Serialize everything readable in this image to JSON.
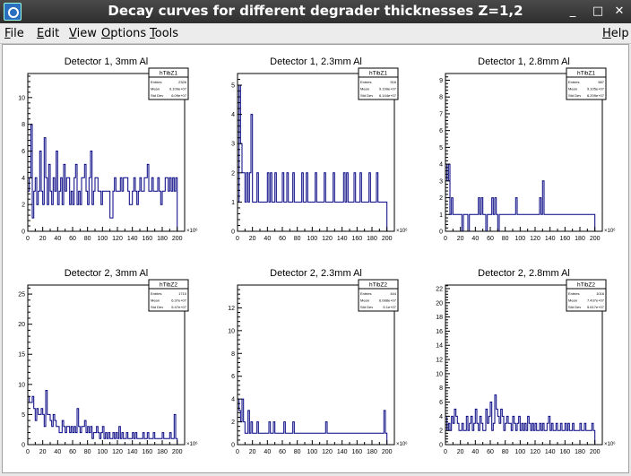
{
  "window": {
    "title": "Decay curves for different degrader thicknesses Z=1,2",
    "minimize": "_",
    "maximize": "□",
    "close": "✕"
  },
  "menu": {
    "file": "File",
    "file_u": "F",
    "file_r": "ile",
    "edit": "Edit",
    "edit_u": "E",
    "edit_r": "dit",
    "view": "View",
    "view_u": "V",
    "view_r": "iew",
    "options": "Options",
    "options_u": "O",
    "options_r": "ptions",
    "tools": "Tools",
    "tools_u": "T",
    "tools_r": "ools",
    "help": "Help",
    "help_u": "H",
    "help_r": "elp"
  },
  "colors": {
    "line": "#000080",
    "frame": "#000000",
    "background": "#ffffff"
  },
  "chart_data": [
    {
      "type": "histogram",
      "title": "Detector 1, 3mm Al",
      "stats": {
        "name": "hTibZ1",
        "rows": [
          [
            "Entries",
            "2326"
          ],
          [
            "Mean",
            "9.109e+07"
          ],
          [
            "Std Dev",
            "6.09e+07"
          ]
        ]
      },
      "xlim": [
        0,
        210
      ],
      "ylim": [
        0,
        11.8
      ],
      "x_exponent": "×10⁶",
      "xticks": [
        0,
        10,
        20,
        30,
        40,
        50,
        60,
        70,
        80,
        90,
        100,
        110,
        120,
        130,
        140,
        150,
        160,
        170,
        180,
        190,
        200
      ],
      "xtick_labels": [
        "0",
        "",
        "20",
        "",
        "40",
        "",
        "60",
        "",
        "80",
        "",
        "100",
        "",
        "120",
        "",
        "140",
        "",
        "160",
        "",
        "180",
        "",
        "200"
      ],
      "yticks": [
        0,
        2,
        4,
        6,
        8,
        10
      ],
      "bin_start": 0,
      "bin_width": 2,
      "values": [
        3,
        4,
        8,
        1,
        3,
        4,
        2,
        3,
        6,
        3,
        2,
        7,
        4,
        2,
        5,
        3,
        2,
        4,
        3,
        6,
        2,
        3,
        4,
        2,
        5,
        3,
        4,
        4,
        2,
        3,
        2,
        4,
        5,
        2,
        3,
        2,
        4,
        4,
        5,
        3,
        2,
        4,
        6,
        2,
        3,
        4,
        4,
        3,
        3,
        2,
        3,
        3,
        3,
        3,
        3,
        1,
        1,
        3,
        4,
        3,
        3,
        3,
        4,
        3,
        4,
        4,
        4,
        3,
        2,
        2,
        3,
        4,
        3,
        2,
        3,
        4,
        3,
        3,
        4,
        4,
        5,
        3,
        3,
        4,
        3,
        3,
        3,
        4,
        3,
        2,
        3,
        3,
        4,
        4,
        3,
        4,
        3,
        4,
        3,
        4
      ]
    },
    {
      "type": "histogram",
      "title": "Detector 1, 2.3mm Al",
      "stats": {
        "name": "hTibZ1",
        "rows": [
          [
            "Entries",
            "916"
          ],
          [
            "Mean",
            "9.199e+07"
          ],
          [
            "Std Dev",
            "6.144e+07"
          ]
        ]
      },
      "xlim": [
        0,
        210
      ],
      "ylim": [
        0,
        5.4
      ],
      "x_exponent": "×10⁶",
      "xticks": [
        0,
        10,
        20,
        30,
        40,
        50,
        60,
        70,
        80,
        90,
        100,
        110,
        120,
        130,
        140,
        150,
        160,
        170,
        180,
        190,
        200
      ],
      "xtick_labels": [
        "0",
        "",
        "20",
        "",
        "40",
        "",
        "60",
        "",
        "80",
        "",
        "100",
        "",
        "120",
        "",
        "140",
        "",
        "160",
        "",
        "180",
        "",
        "200"
      ],
      "yticks": [
        0,
        1,
        2,
        3,
        4,
        5
      ],
      "bin_start": 0,
      "bin_width": 2,
      "values": [
        1,
        5,
        3,
        2,
        2,
        1,
        2,
        1,
        2,
        4,
        1,
        1,
        1,
        2,
        1,
        1,
        1,
        1,
        1,
        1,
        2,
        1,
        2,
        1,
        1,
        2,
        1,
        1,
        1,
        1,
        2,
        1,
        1,
        2,
        1,
        1,
        1,
        2,
        1,
        1,
        1,
        1,
        1,
        2,
        1,
        1,
        2,
        1,
        1,
        1,
        1,
        1,
        2,
        1,
        1,
        1,
        1,
        1,
        2,
        1,
        1,
        1,
        1,
        1,
        2,
        1,
        1,
        1,
        1,
        1,
        1,
        2,
        1,
        2,
        1,
        1,
        1,
        1,
        2,
        1,
        1,
        1,
        2,
        1,
        1,
        1,
        1,
        1,
        2,
        1,
        1,
        1,
        1,
        2,
        1,
        1,
        1,
        1,
        1,
        1
      ]
    },
    {
      "type": "histogram",
      "title": "Detector 1, 2.8mm Al",
      "stats": {
        "name": "hTibZ1",
        "rows": [
          [
            "Entries",
            "587"
          ],
          [
            "Mean",
            "9.105e+07"
          ],
          [
            "Std Dev",
            "6.209e+07"
          ]
        ]
      },
      "xlim": [
        0,
        210
      ],
      "ylim": [
        0,
        9.4
      ],
      "x_exponent": "×10⁶",
      "xticks": [
        0,
        10,
        20,
        30,
        40,
        50,
        60,
        70,
        80,
        90,
        100,
        110,
        120,
        130,
        140,
        150,
        160,
        170,
        180,
        190,
        200
      ],
      "xtick_labels": [
        "0",
        "",
        "20",
        "",
        "40",
        "",
        "60",
        "",
        "80",
        "",
        "100",
        "",
        "120",
        "",
        "140",
        "",
        "160",
        "",
        "180",
        "",
        "200"
      ],
      "yticks": [
        0,
        1,
        2,
        3,
        4,
        5,
        6,
        7,
        8,
        9
      ],
      "bin_start": 0,
      "bin_width": 2,
      "values": [
        4,
        3,
        4,
        1,
        2,
        1,
        1,
        1,
        1,
        1,
        1,
        0,
        1,
        1,
        1,
        0,
        1,
        1,
        1,
        1,
        1,
        1,
        2,
        1,
        2,
        1,
        1,
        0,
        1,
        1,
        1,
        2,
        1,
        2,
        1,
        0,
        1,
        1,
        1,
        1,
        1,
        1,
        1,
        1,
        1,
        1,
        1,
        2,
        1,
        1,
        1,
        1,
        1,
        1,
        1,
        1,
        1,
        1,
        1,
        1,
        1,
        1,
        1,
        2,
        1,
        3,
        1,
        1,
        1,
        1,
        1,
        1,
        1,
        1,
        1,
        1,
        1,
        1,
        1,
        1,
        1,
        1,
        1,
        1,
        1,
        1,
        1,
        1,
        1,
        1,
        1,
        1,
        1,
        1,
        1,
        1,
        1,
        1,
        1,
        1
      ]
    },
    {
      "type": "histogram",
      "title": "Detector 2, 3mm Al",
      "stats": {
        "name": "hTibZ2",
        "rows": [
          [
            "Entries",
            "1710"
          ],
          [
            "Mean",
            "6.37e+07"
          ],
          [
            "Std Dev",
            "5.47e+07"
          ]
        ]
      },
      "xlim": [
        0,
        210
      ],
      "ylim": [
        0,
        26.5
      ],
      "x_exponent": "×10⁶",
      "xticks": [
        0,
        10,
        20,
        30,
        40,
        50,
        60,
        70,
        80,
        90,
        100,
        110,
        120,
        130,
        140,
        150,
        160,
        170,
        180,
        190,
        200
      ],
      "xtick_labels": [
        "0",
        "",
        "20",
        "",
        "40",
        "",
        "60",
        "",
        "80",
        "",
        "100",
        "",
        "120",
        "",
        "140",
        "",
        "160",
        "",
        "180",
        "",
        "200"
      ],
      "yticks": [
        0,
        5,
        10,
        15,
        20,
        25
      ],
      "bin_start": 0,
      "bin_width": 2,
      "values": [
        8,
        7,
        7,
        8,
        6,
        4,
        6,
        5,
        5,
        6,
        5,
        3,
        9,
        5,
        5,
        4,
        3,
        5,
        4,
        3,
        3,
        2,
        2,
        4,
        3,
        2,
        3,
        3,
        2,
        3,
        2,
        3,
        2,
        6,
        3,
        2,
        3,
        3,
        4,
        2,
        3,
        2,
        3,
        1,
        2,
        2,
        3,
        2,
        1,
        2,
        3,
        1,
        2,
        1,
        2,
        1,
        1,
        2,
        1,
        2,
        1,
        3,
        1,
        2,
        1,
        1,
        2,
        1,
        1,
        1,
        2,
        1,
        2,
        1,
        1,
        1,
        1,
        2,
        1,
        1,
        2,
        1,
        1,
        1,
        2,
        1,
        1,
        1,
        1,
        1,
        2,
        1,
        1,
        1,
        1,
        2,
        1,
        1,
        5,
        1
      ]
    },
    {
      "type": "histogram",
      "title": "Detector 2, 2.3mm Al",
      "stats": {
        "name": "hTibZ2",
        "rows": [
          [
            "Entries",
            "444"
          ],
          [
            "Mean",
            "6.088e+07"
          ],
          [
            "Std Dev",
            "5.1e+07"
          ]
        ]
      },
      "xlim": [
        0,
        210
      ],
      "ylim": [
        0,
        14
      ],
      "x_exponent": "×10⁶",
      "xticks": [
        0,
        10,
        20,
        30,
        40,
        50,
        60,
        70,
        80,
        90,
        100,
        110,
        120,
        130,
        140,
        150,
        160,
        170,
        180,
        190,
        200
      ],
      "xtick_labels": [
        "0",
        "",
        "20",
        "",
        "40",
        "",
        "60",
        "",
        "80",
        "",
        "100",
        "",
        "120",
        "",
        "140",
        "",
        "160",
        "",
        "180",
        "",
        "200"
      ],
      "yticks": [
        0,
        2,
        4,
        6,
        8,
        10,
        12
      ],
      "bin_start": 0,
      "bin_width": 2,
      "values": [
        4,
        3,
        2,
        4,
        2,
        1,
        1,
        3,
        1,
        2,
        1,
        1,
        1,
        2,
        1,
        1,
        1,
        1,
        1,
        1,
        1,
        2,
        1,
        1,
        2,
        1,
        1,
        1,
        1,
        1,
        1,
        2,
        1,
        1,
        1,
        1,
        1,
        2,
        1,
        1,
        1,
        1,
        1,
        1,
        1,
        1,
        1,
        1,
        1,
        1,
        1,
        1,
        1,
        1,
        1,
        1,
        1,
        1,
        1,
        2,
        1,
        1,
        1,
        1,
        1,
        1,
        1,
        1,
        1,
        1,
        1,
        1,
        1,
        1,
        1,
        1,
        1,
        1,
        1,
        1,
        1,
        1,
        1,
        1,
        1,
        1,
        1,
        1,
        1,
        1,
        1,
        1,
        1,
        1,
        1,
        1,
        1,
        1,
        3,
        1
      ]
    },
    {
      "type": "histogram",
      "title": "Detector 2, 2.8mm Al",
      "stats": {
        "name": "hTibZ2",
        "rows": [
          [
            "Entries",
            "1016"
          ],
          [
            "Mean",
            "7.437e+07"
          ],
          [
            "Std Dev",
            "5.617e+07"
          ]
        ]
      },
      "xlim": [
        0,
        210
      ],
      "ylim": [
        0,
        22.5
      ],
      "x_exponent": "×10⁶",
      "xticks": [
        0,
        10,
        20,
        30,
        40,
        50,
        60,
        70,
        80,
        90,
        100,
        110,
        120,
        130,
        140,
        150,
        160,
        170,
        180,
        190,
        200
      ],
      "xtick_labels": [
        "0",
        "",
        "20",
        "",
        "40",
        "",
        "60",
        "",
        "80",
        "",
        "100",
        "",
        "120",
        "",
        "140",
        "",
        "160",
        "",
        "180",
        "",
        "200"
      ],
      "yticks": [
        0,
        2,
        4,
        6,
        8,
        10,
        12,
        14,
        16,
        18,
        20,
        22
      ],
      "bin_start": 0,
      "bin_width": 2,
      "values": [
        4,
        2,
        3,
        2,
        4,
        3,
        5,
        4,
        3,
        2,
        2,
        3,
        2,
        2,
        4,
        2,
        3,
        4,
        2,
        3,
        5,
        3,
        2,
        4,
        3,
        2,
        2,
        5,
        3,
        4,
        6,
        2,
        3,
        7,
        5,
        4,
        3,
        5,
        4,
        2,
        3,
        4,
        3,
        3,
        2,
        4,
        3,
        2,
        3,
        4,
        2,
        3,
        2,
        3,
        2,
        4,
        3,
        2,
        3,
        2,
        3,
        2,
        2,
        3,
        2,
        3,
        2,
        2,
        3,
        4,
        2,
        3,
        2,
        2,
        3,
        2,
        2,
        3,
        2,
        2,
        3,
        2,
        3,
        2,
        2,
        3,
        2,
        2,
        2,
        2,
        3,
        2,
        2,
        3,
        2,
        2,
        2,
        2,
        3,
        2
      ]
    }
  ]
}
